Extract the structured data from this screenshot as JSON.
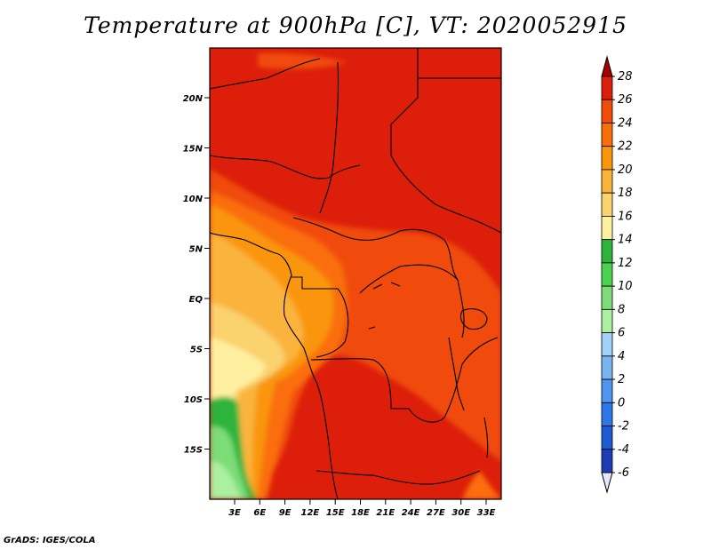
{
  "title": "Temperature at 900hPa [C], VT: 2020052915",
  "credit": "GrADS: IGES/COLA",
  "map": {
    "lat_ticks": [
      "20N",
      "15N",
      "10N",
      "5N",
      "EQ",
      "5S",
      "10S",
      "15S"
    ],
    "lon_ticks": [
      "3E",
      "6E",
      "9E",
      "12E",
      "15E",
      "18E",
      "21E",
      "24E",
      "27E",
      "30E",
      "33E"
    ],
    "lon_range_deg": [
      0,
      35
    ],
    "lat_range_deg": [
      -20,
      25
    ]
  },
  "colorbar": {
    "levels": [
      "28",
      "26",
      "24",
      "22",
      "20",
      "18",
      "16",
      "14",
      "12",
      "10",
      "8",
      "6",
      "4",
      "2",
      "0",
      "-2",
      "-4",
      "-6"
    ],
    "colors": [
      "#a50000",
      "#dc1e0a",
      "#f04b0a",
      "#fa6e0a",
      "#fa960a",
      "#fab43c",
      "#fad26e",
      "#fff0a0",
      "#2db43c",
      "#4bd250",
      "#7ddc78",
      "#aaf0a0",
      "#a0d2fa",
      "#78b4f0",
      "#5096f0",
      "#2d78e6",
      "#1e5ad2",
      "#1e3cb4",
      "#0f1e96",
      "#0a0a64",
      "#e6e6fa"
    ],
    "top_color": "#a50000",
    "bottom_color": "#e6e6fa"
  }
}
